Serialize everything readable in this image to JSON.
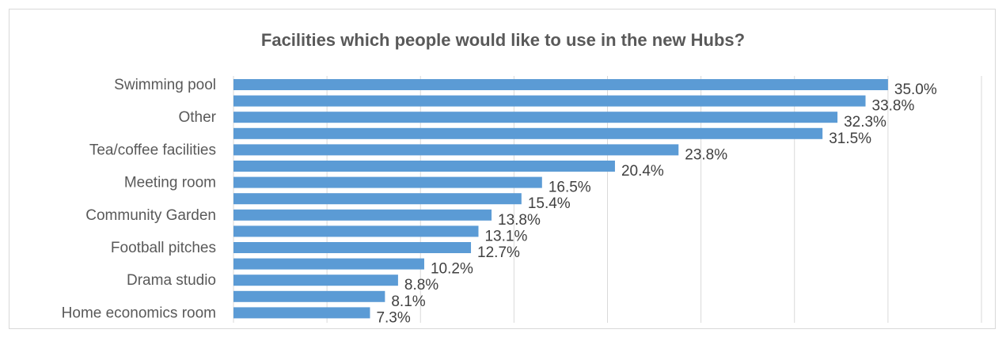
{
  "chart_data": {
    "type": "bar",
    "orientation": "horizontal",
    "title": "Facilities which people would like to use in the new Hubs?",
    "xlabel": "",
    "ylabel": "",
    "categories": [
      "Swimming pool",
      "",
      "Other",
      "",
      "Tea/coffee facilities",
      "",
      "Meeting room",
      "",
      "Community Garden",
      "",
      "Football pitches",
      "",
      "Drama studio",
      "",
      "Home economics room"
    ],
    "values": [
      35.0,
      33.8,
      32.3,
      31.5,
      23.8,
      20.4,
      16.5,
      15.4,
      13.8,
      13.1,
      12.7,
      10.2,
      8.8,
      8.1,
      7.3
    ],
    "value_labels": [
      "35.0%",
      "33.8%",
      "32.3%",
      "31.5%",
      "23.8%",
      "20.4%",
      "16.5%",
      "15.4%",
      "13.8%",
      "13.1%",
      "12.7%",
      "10.2%",
      "8.8%",
      "8.1%",
      "7.3%"
    ],
    "xlim": [
      0,
      40
    ],
    "grid": true,
    "legend": "none",
    "colors": {
      "bar": "#5b9bd5",
      "grid": "#d9d9d9",
      "text": "#595959"
    }
  }
}
